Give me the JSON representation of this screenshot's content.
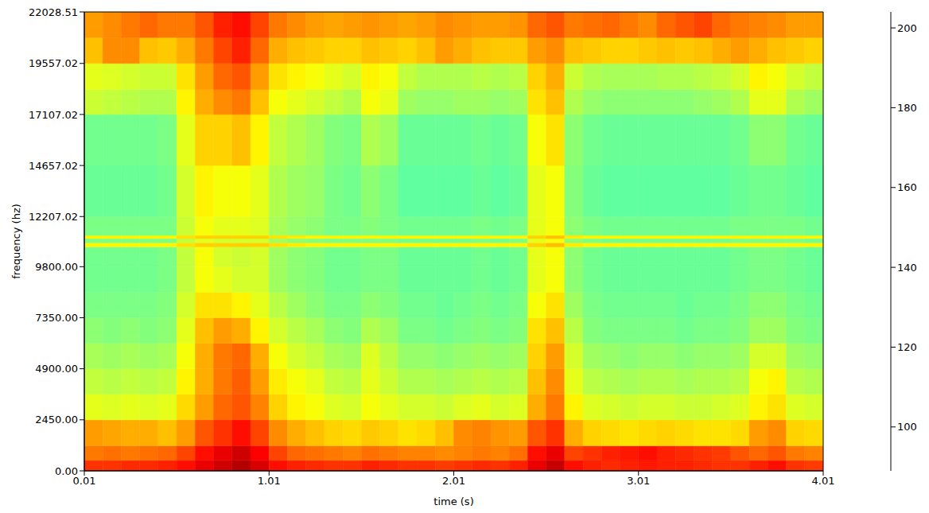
{
  "chart_data": {
    "type": "heatmap",
    "x_label": "time (s)",
    "y_label": "frequency (hz)",
    "xlim": [
      0.01,
      4.01
    ],
    "ylim": [
      0,
      22028.51
    ],
    "xticks": [
      0.01,
      1.01,
      2.01,
      3.01,
      4.01
    ],
    "yticks": [
      {
        "value": 0,
        "label": "0.00"
      },
      {
        "value": 2450,
        "label": "2450.00"
      },
      {
        "value": 4900,
        "label": "4900.00"
      },
      {
        "value": 7350,
        "label": "7350.00"
      },
      {
        "value": 9800,
        "label": "9800.00"
      },
      12207.02,
      14657.02,
      17107.02,
      19557.02,
      22028.51
    ],
    "x_bins": [
      0.01,
      0.11,
      0.21,
      0.31,
      0.41,
      0.51,
      0.61,
      0.71,
      0.81,
      0.91,
      1.01,
      1.11,
      1.21,
      1.31,
      1.41,
      1.51,
      1.61,
      1.71,
      1.81,
      1.91,
      2.01,
      2.11,
      2.21,
      2.31,
      2.41,
      2.51,
      2.61,
      2.71,
      2.81,
      2.91,
      3.01,
      3.11,
      3.21,
      3.31,
      3.41,
      3.51,
      3.61,
      3.71,
      3.81,
      3.91,
      4.01
    ],
    "y_bins": [
      0,
      500,
      1200,
      2450,
      3675,
      4900,
      6125,
      7350,
      8575,
      9800,
      10750,
      10950,
      11150,
      11300,
      12207.02,
      14657.02,
      17107.02,
      18300,
      19557.02,
      20800,
      22028.51
    ],
    "z": [
      [
        184,
        184,
        185,
        185,
        186,
        188,
        192,
        195,
        198,
        194,
        188,
        186,
        185,
        184,
        184,
        186,
        185,
        184,
        184,
        183,
        184,
        185,
        184,
        186,
        192,
        196,
        188,
        186,
        185,
        186,
        187,
        186,
        186,
        185,
        184,
        184,
        186,
        188,
        184,
        183
      ],
      [
        176,
        177,
        176,
        177,
        178,
        182,
        188,
        192,
        195,
        190,
        182,
        178,
        177,
        176,
        175,
        177,
        176,
        175,
        175,
        174,
        175,
        176,
        175,
        177,
        188,
        192,
        182,
        184,
        186,
        187,
        188,
        186,
        185,
        184,
        183,
        180,
        178,
        180,
        176,
        175
      ],
      [
        172,
        171,
        170,
        170,
        168,
        172,
        180,
        184,
        188,
        182,
        174,
        170,
        168,
        166,
        165,
        167,
        166,
        164,
        165,
        168,
        174,
        175,
        173,
        172,
        180,
        184,
        170,
        166,
        165,
        164,
        165,
        166,
        165,
        164,
        164,
        165,
        172,
        174,
        166,
        165
      ],
      [
        158,
        157,
        158,
        157,
        158,
        165,
        172,
        178,
        180,
        175,
        166,
        162,
        160,
        157,
        156,
        160,
        158,
        156,
        156,
        155,
        157,
        158,
        156,
        157,
        170,
        176,
        162,
        157,
        156,
        155,
        156,
        156,
        155,
        155,
        156,
        157,
        162,
        164,
        157,
        156
      ],
      [
        154,
        153,
        154,
        153,
        154,
        162,
        170,
        176,
        179,
        172,
        163,
        160,
        158,
        154,
        153,
        158,
        155,
        152,
        152,
        151,
        152,
        153,
        152,
        153,
        168,
        174,
        158,
        153,
        152,
        151,
        152,
        152,
        151,
        152,
        152,
        153,
        160,
        162,
        153,
        152
      ],
      [
        151,
        150,
        151,
        150,
        151,
        160,
        170,
        176,
        178,
        170,
        160,
        156,
        154,
        151,
        150,
        157,
        153,
        149,
        149,
        148,
        149,
        150,
        149,
        150,
        166,
        172,
        156,
        150,
        149,
        148,
        149,
        149,
        148,
        149,
        149,
        150,
        156,
        156,
        150,
        149
      ],
      [
        148,
        147,
        148,
        147,
        148,
        158,
        168,
        172,
        170,
        162,
        156,
        153,
        151,
        148,
        147,
        152,
        150,
        146,
        146,
        145,
        146,
        147,
        146,
        147,
        164,
        168,
        153,
        147,
        146,
        146,
        146,
        146,
        145,
        146,
        146,
        147,
        150,
        150,
        147,
        146
      ],
      [
        146,
        146,
        146,
        146,
        147,
        156,
        164,
        164,
        162,
        158,
        153,
        150,
        148,
        146,
        146,
        148,
        147,
        145,
        145,
        144,
        145,
        146,
        145,
        146,
        160,
        164,
        150,
        146,
        145,
        145,
        145,
        145,
        144,
        145,
        145,
        146,
        148,
        148,
        146,
        145
      ],
      [
        145,
        145,
        145,
        145,
        146,
        154,
        160,
        158,
        156,
        156,
        150,
        148,
        147,
        145,
        145,
        146,
        146,
        144,
        144,
        144,
        144,
        145,
        144,
        145,
        158,
        160,
        148,
        145,
        144,
        144,
        144,
        144,
        144,
        144,
        144,
        145,
        146,
        146,
        145,
        144
      ],
      [
        145,
        145,
        145,
        145,
        146,
        154,
        160,
        156,
        155,
        156,
        150,
        148,
        147,
        145,
        145,
        146,
        146,
        144,
        144,
        144,
        144,
        145,
        144,
        145,
        158,
        160,
        148,
        145,
        144,
        144,
        144,
        144,
        144,
        144,
        144,
        145,
        146,
        146,
        145,
        144
      ],
      [
        162,
        162,
        162,
        162,
        162,
        164,
        166,
        166,
        166,
        166,
        164,
        163,
        162,
        162,
        162,
        162,
        162,
        162,
        162,
        162,
        162,
        162,
        162,
        162,
        166,
        168,
        163,
        162,
        162,
        162,
        162,
        162,
        162,
        162,
        162,
        162,
        162,
        162,
        162,
        162
      ],
      [
        146,
        146,
        146,
        146,
        146,
        154,
        158,
        156,
        156,
        156,
        150,
        148,
        147,
        146,
        146,
        146,
        146,
        145,
        145,
        145,
        145,
        146,
        145,
        146,
        158,
        160,
        148,
        146,
        145,
        145,
        145,
        145,
        145,
        145,
        145,
        146,
        146,
        146,
        146,
        145
      ],
      [
        162,
        162,
        162,
        162,
        162,
        164,
        166,
        166,
        166,
        166,
        164,
        163,
        162,
        162,
        162,
        162,
        162,
        162,
        162,
        162,
        162,
        162,
        162,
        162,
        166,
        168,
        163,
        162,
        162,
        162,
        162,
        162,
        162,
        162,
        162,
        162,
        162,
        162,
        162,
        162
      ],
      [
        146,
        146,
        146,
        146,
        146,
        155,
        160,
        158,
        158,
        157,
        151,
        149,
        148,
        146,
        146,
        147,
        146,
        145,
        145,
        145,
        145,
        146,
        145,
        146,
        158,
        160,
        148,
        146,
        145,
        145,
        145,
        145,
        145,
        145,
        145,
        146,
        146,
        146,
        146,
        145
      ],
      [
        144,
        144,
        144,
        144,
        145,
        156,
        162,
        160,
        160,
        158,
        152,
        150,
        149,
        146,
        145,
        148,
        146,
        143,
        143,
        143,
        143,
        144,
        143,
        144,
        158,
        160,
        147,
        144,
        143,
        143,
        143,
        143,
        143,
        143,
        143,
        144,
        145,
        145,
        144,
        143
      ],
      [
        145,
        145,
        145,
        145,
        146,
        158,
        166,
        166,
        168,
        162,
        154,
        152,
        150,
        147,
        146,
        152,
        150,
        144,
        144,
        144,
        144,
        145,
        144,
        145,
        160,
        164,
        148,
        145,
        144,
        144,
        144,
        144,
        144,
        144,
        144,
        145,
        148,
        148,
        145,
        144
      ],
      [
        155,
        154,
        153,
        152,
        152,
        162,
        170,
        174,
        176,
        168,
        160,
        158,
        156,
        154,
        152,
        160,
        158,
        150,
        149,
        149,
        150,
        150,
        149,
        150,
        164,
        168,
        152,
        149,
        148,
        148,
        148,
        148,
        148,
        149,
        150,
        152,
        158,
        158,
        152,
        150
      ],
      [
        158,
        157,
        156,
        155,
        155,
        164,
        172,
        178,
        180,
        172,
        164,
        162,
        160,
        158,
        156,
        162,
        160,
        154,
        152,
        152,
        152,
        153,
        152,
        153,
        166,
        170,
        155,
        152,
        151,
        151,
        151,
        152,
        152,
        153,
        154,
        156,
        162,
        160,
        156,
        154
      ],
      [
        168,
        174,
        174,
        168,
        167,
        170,
        176,
        182,
        186,
        178,
        170,
        168,
        167,
        166,
        166,
        168,
        167,
        166,
        168,
        172,
        170,
        168,
        167,
        167,
        172,
        174,
        168,
        167,
        166,
        166,
        167,
        168,
        167,
        168,
        170,
        172,
        170,
        168,
        167,
        166
      ],
      [
        172,
        174,
        176,
        178,
        176,
        176,
        180,
        186,
        188,
        182,
        176,
        174,
        172,
        171,
        172,
        173,
        172,
        171,
        172,
        174,
        173,
        172,
        172,
        173,
        178,
        180,
        176,
        177,
        178,
        176,
        174,
        178,
        180,
        182,
        178,
        176,
        175,
        174,
        172,
        172
      ]
    ],
    "colorbar": {
      "range": [
        89,
        204
      ],
      "ticks": [
        100,
        120,
        140,
        160,
        180,
        200
      ]
    }
  }
}
